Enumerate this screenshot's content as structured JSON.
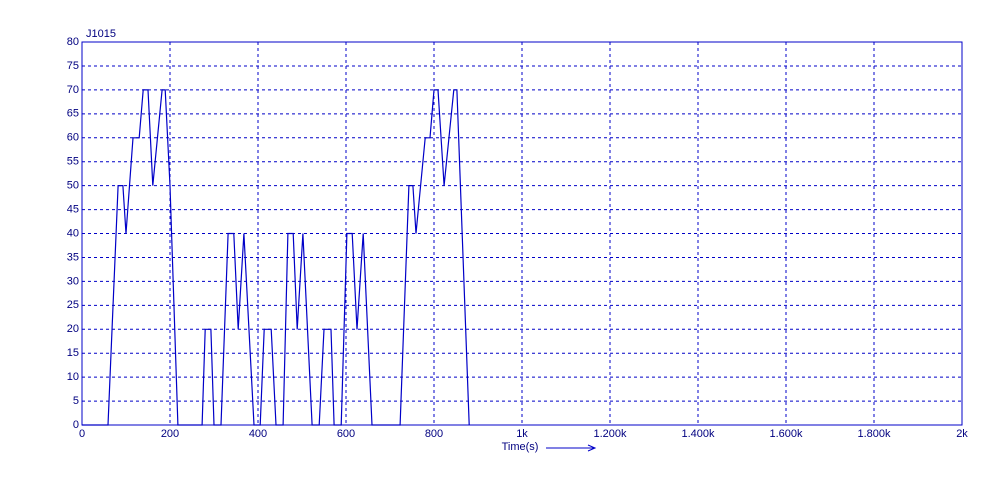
{
  "chart_data": {
    "type": "line",
    "title": "J1015",
    "xlabel": "Time(s)",
    "x": [
      0,
      59,
      82,
      93,
      100,
      116,
      130,
      139,
      150,
      161,
      182,
      189,
      200,
      218,
      273,
      280,
      293,
      300,
      316,
      332,
      345,
      355,
      368,
      391,
      405,
      414,
      430,
      441,
      457,
      468,
      480,
      489,
      502,
      523,
      539,
      550,
      566,
      573,
      589,
      602,
      614,
      625,
      639,
      659,
      723,
      743,
      752,
      759,
      780,
      791,
      800,
      809,
      823,
      845,
      852,
      880
    ],
    "values": [
      0,
      0,
      50,
      50,
      40,
      60,
      60,
      70,
      70,
      50,
      70,
      70,
      50,
      0,
      0,
      20,
      20,
      0,
      0,
      40,
      40,
      20,
      40,
      0,
      0,
      20,
      20,
      0,
      0,
      40,
      40,
      20,
      40,
      0,
      0,
      20,
      20,
      0,
      0,
      40,
      40,
      20,
      40,
      0,
      0,
      50,
      50,
      40,
      60,
      60,
      70,
      70,
      50,
      70,
      70,
      0
    ],
    "color": "#0000c8",
    "xlim": [
      0,
      2000
    ],
    "xticks": [
      0,
      200,
      400,
      600,
      800,
      {
        "value": 1000,
        "label": "1k"
      },
      {
        "value": 1200,
        "label": "1.200k"
      },
      {
        "value": 1400,
        "label": "1.400k"
      },
      {
        "value": 1600,
        "label": "1.600k"
      },
      {
        "value": 1800,
        "label": "1.800k"
      },
      {
        "value": 2000,
        "label": "2k"
      }
    ],
    "ylim": [
      0,
      80
    ],
    "yticks": [
      0,
      5,
      10,
      15,
      20,
      25,
      30,
      35,
      40,
      45,
      50,
      55,
      60,
      65,
      70,
      75,
      80
    ],
    "grid": true
  }
}
